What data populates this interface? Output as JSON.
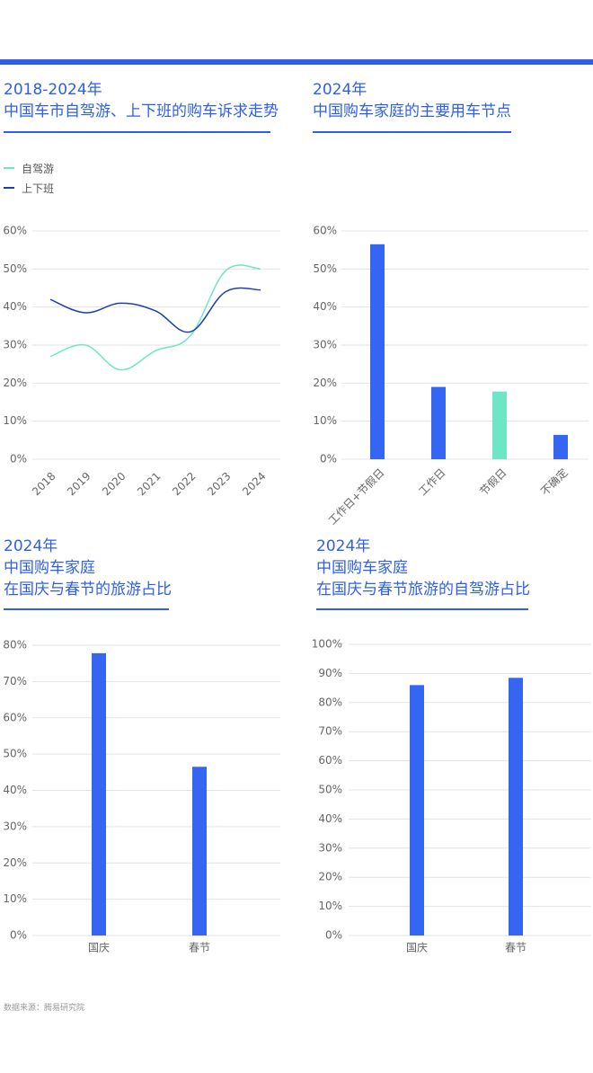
{
  "colors": {
    "accent": "#2f5fe8",
    "teal": "#6ee6c6",
    "navy": "#1d3fae",
    "bar": "#3466f3"
  },
  "charts": {
    "c1": {
      "title_line1": "2018-2024年",
      "title_line2": "中国车市自驾游、上下班的购车诉求走势"
    },
    "c2": {
      "title_line1": "2024年",
      "title_line2": "中国购车家庭的主要用车节点"
    },
    "c3": {
      "title_line1": "2024年",
      "title_line2": "中国购车家庭",
      "title_line3": "在国庆与春节的旅游占比"
    },
    "c4": {
      "title_line1": "2024年",
      "title_line2": "中国购车家庭",
      "title_line3": "在国庆与春节旅游的自驾游占比"
    }
  },
  "legend": {
    "items": [
      "自驾游",
      "上下班"
    ]
  },
  "source": "数据来源：腾易研究院",
  "chart_data": [
    {
      "type": "line",
      "x": [
        "2018",
        "2019",
        "2020",
        "2021",
        "2022",
        "2023",
        "2024"
      ],
      "series": [
        {
          "name": "自驾游",
          "values": [
            27,
            30,
            23.5,
            28.5,
            32.5,
            49.5,
            50
          ]
        },
        {
          "name": "上下班",
          "values": [
            42,
            38.5,
            41,
            39,
            33.5,
            44,
            44.5
          ]
        }
      ],
      "ylim": [
        0,
        60
      ],
      "yticks": [
        "0%",
        "10%",
        "20%",
        "30%",
        "40%",
        "50%",
        "60%"
      ],
      "legend": "top-left",
      "grid": true
    },
    {
      "type": "bar",
      "categories": [
        "工作日+节假日",
        "工作日",
        "节假日",
        "不确定"
      ],
      "values": [
        56.5,
        19,
        17.8,
        6.4
      ],
      "highlight_index": 2,
      "ylim": [
        0,
        60
      ],
      "yticks": [
        "0%",
        "10%",
        "20%",
        "30%",
        "40%",
        "50%",
        "60%"
      ],
      "grid": true
    },
    {
      "type": "bar",
      "categories": [
        "国庆",
        "春节"
      ],
      "values": [
        77.8,
        46.5
      ],
      "ylim": [
        0,
        80
      ],
      "yticks": [
        "0%",
        "10%",
        "20%",
        "30%",
        "40%",
        "50%",
        "60%",
        "70%",
        "80%"
      ],
      "grid": true
    },
    {
      "type": "bar",
      "categories": [
        "国庆",
        "春节"
      ],
      "values": [
        86,
        88.5
      ],
      "ylim": [
        0,
        100
      ],
      "yticks": [
        "0%",
        "10%",
        "20%",
        "30%",
        "40%",
        "50%",
        "60%",
        "70%",
        "80%",
        "90%",
        "100%"
      ],
      "grid": true
    }
  ]
}
